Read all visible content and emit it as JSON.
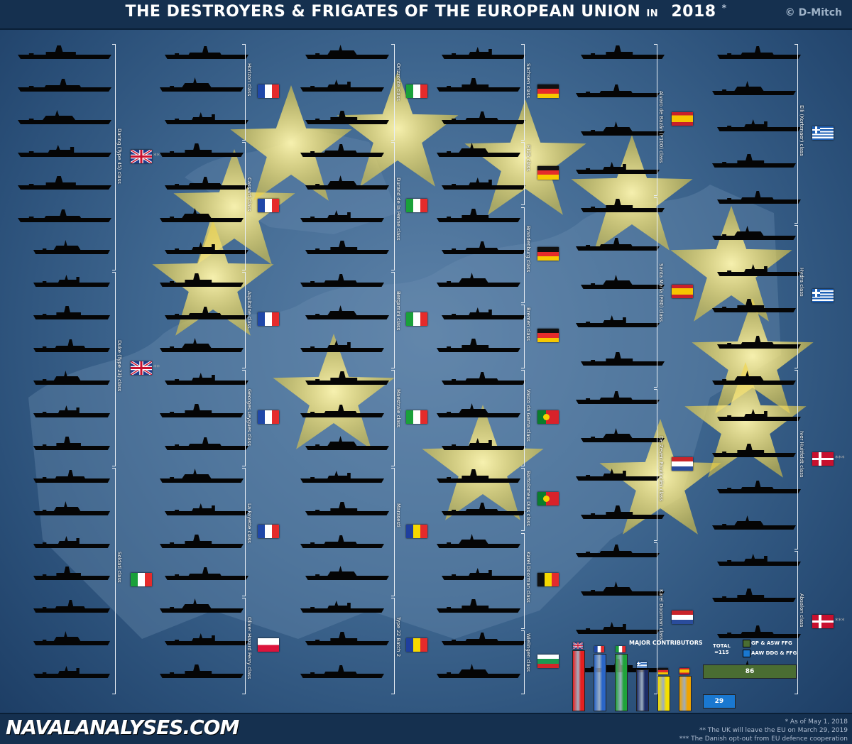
{
  "header": {
    "title": "THE DESTROYERS & FRIGATES OF THE EUROPEAN UNION",
    "in": "IN",
    "year": "2018",
    "asterisk": "*",
    "copyright": "© D-Mitch"
  },
  "footer": {
    "logo": "NAVALANALYSES.COM",
    "note1": "* As of May 1, 2018",
    "note2": "** The UK will leave the EU on March 29, 2019",
    "note3": "*** The Danish opt-out from EU defence cooperation"
  },
  "colors": {
    "uk": "#e52020",
    "fr": "#2a66c8",
    "it": "#1fa33a",
    "gr": "#1c2c66",
    "de": "#f4e000",
    "es": "#f0a400",
    "gp_asw": "#4a6d32",
    "aaw": "#1a78d0"
  },
  "columns": [
    {
      "ship_count": 20,
      "classes": [
        {
          "label": "Daring (Type 45) class",
          "flag": "uk",
          "mark": "**"
        },
        {
          "label": "Duke (Type 23) class",
          "flag": "uk",
          "mark": "**"
        },
        {
          "label": "Soldati class",
          "flag": "it"
        }
      ]
    },
    {
      "ship_count": 20,
      "classes": [
        {
          "label": "Horizon class",
          "flag": "fr"
        },
        {
          "label": "Cassard class",
          "flag": "fr"
        },
        {
          "label": "Aquitaine class",
          "flag": "fr"
        },
        {
          "label": "Georges Leygues class",
          "flag": "fr"
        },
        {
          "label": "La Fayette class",
          "flag": "fr"
        },
        {
          "label": "Oliver Hazard Perry class",
          "flag": "pl"
        }
      ]
    },
    {
      "ship_count": 20,
      "classes": [
        {
          "label": "Orizzonte class",
          "flag": "it"
        },
        {
          "label": "Durand de la Penne class",
          "flag": "it"
        },
        {
          "label": "Bergamini class",
          "flag": "it"
        },
        {
          "label": "Maestrale class",
          "flag": "it"
        },
        {
          "label": "Marasesti",
          "flag": "ro"
        },
        {
          "label": "Type 22 Batch 2",
          "flag": "ro"
        }
      ]
    },
    {
      "ship_count": 20,
      "classes": [
        {
          "label": "Sachsen class",
          "flag": "de"
        },
        {
          "label": "F125 class",
          "flag": "de"
        },
        {
          "label": "Brandenburg class",
          "flag": "de"
        },
        {
          "label": "Bremen class",
          "flag": "de"
        },
        {
          "label": "Vasco da Gama class",
          "flag": "pt"
        },
        {
          "label": "Bartolomeu Dias class",
          "flag": "pt"
        },
        {
          "label": "Karel Doorman class",
          "flag": "be"
        },
        {
          "label": "Wielingen class",
          "flag": "bg"
        }
      ]
    },
    {
      "ship_count": 17,
      "classes": [
        {
          "label": "Alvaro de Bazán (F100) class",
          "flag": "es"
        },
        {
          "label": "Santa María (F80) class",
          "flag": "es"
        },
        {
          "label": "De Zeven Provinciën class",
          "flag": "nl"
        },
        {
          "label": "Karel Doorman class",
          "flag": "nl"
        }
      ]
    },
    {
      "ship_count": 18,
      "classes": [
        {
          "label": "Elli (Kortenaer) class",
          "flag": "gr"
        },
        {
          "label": "Hydra class",
          "flag": "gr"
        },
        {
          "label": "Iver Huitfeldt class",
          "flag": "dk",
          "mark": "***"
        },
        {
          "label": "Absalon class",
          "flag": "dk",
          "mark": "***"
        }
      ]
    }
  ],
  "chart_data": [
    {
      "type": "bar",
      "title": "MAJOR CONTRIBUTORS",
      "categories": [
        "uk",
        "fr",
        "it",
        "gr",
        "de",
        "es"
      ],
      "values": [
        19,
        18,
        18,
        13,
        11,
        11
      ],
      "ylim": [
        0,
        20
      ]
    },
    {
      "type": "bar",
      "title": "TOTAL =115",
      "categories": [
        "GP & ASW FFG",
        "AAW DDG & FFG"
      ],
      "values": [
        86,
        29
      ],
      "legend": [
        "GP & ASW FFG",
        "AAW DDG & FFG"
      ]
    }
  ]
}
